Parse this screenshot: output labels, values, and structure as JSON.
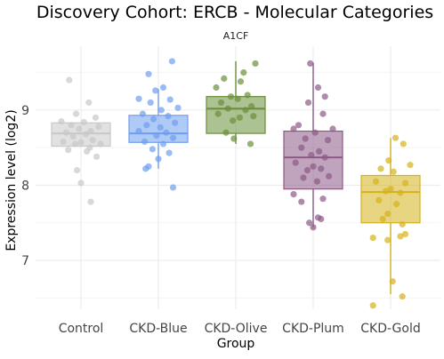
{
  "chart_data": {
    "type": "box",
    "title": "Discovery Cohort: ERCB - Molecular Categories",
    "subtitle": "A1CF",
    "xlabel": "Group",
    "ylabel": "Expression level (log2)",
    "ylim": [
      6.35,
      9.85
    ],
    "yticks": [
      7,
      8,
      9
    ],
    "grid": true,
    "legend": "none",
    "categories": [
      "Control",
      "CKD-Blue",
      "CKD-Olive",
      "CKD-Plum",
      "CKD-Gold"
    ],
    "colors": {
      "Control": "#c8c8c8",
      "CKD-Blue": "#6f9ef0",
      "CKD-Olive": "#6a8f3a",
      "CKD-Plum": "#8c5a86",
      "CKD-Gold": "#d4b21c"
    },
    "boxes": [
      {
        "group": "Control",
        "q1": 8.52,
        "median": 8.69,
        "q3": 8.83,
        "whisker_low": 8.52,
        "whisker_high": 8.83
      },
      {
        "group": "CKD-Blue",
        "q1": 8.57,
        "median": 8.69,
        "q3": 8.93,
        "whisker_low": 8.22,
        "whisker_high": 9.28
      },
      {
        "group": "CKD-Olive",
        "q1": 8.69,
        "median": 9.02,
        "q3": 9.18,
        "whisker_low": 8.55,
        "whisker_high": 9.65
      },
      {
        "group": "CKD-Plum",
        "q1": 7.95,
        "median": 8.37,
        "q3": 8.72,
        "whisker_low": 7.43,
        "whisker_high": 9.63
      },
      {
        "group": "CKD-Gold",
        "q1": 7.5,
        "median": 7.91,
        "q3": 8.13,
        "whisker_low": 6.55,
        "whisker_high": 8.63
      }
    ],
    "points": {
      "Control": [
        {
          "x": -0.12,
          "y": 9.4
        },
        {
          "x": 0.08,
          "y": 9.1
        },
        {
          "x": -0.05,
          "y": 8.95
        },
        {
          "x": 0.15,
          "y": 8.9
        },
        {
          "x": -0.2,
          "y": 8.85
        },
        {
          "x": 0.03,
          "y": 8.84
        },
        {
          "x": -0.1,
          "y": 8.8
        },
        {
          "x": 0.18,
          "y": 8.78
        },
        {
          "x": -0.02,
          "y": 8.75
        },
        {
          "x": 0.1,
          "y": 8.72
        },
        {
          "x": -0.15,
          "y": 8.7
        },
        {
          "x": 0.05,
          "y": 8.68
        },
        {
          "x": -0.08,
          "y": 8.65
        },
        {
          "x": 0.12,
          "y": 8.6
        },
        {
          "x": -0.18,
          "y": 8.58
        },
        {
          "x": 0.0,
          "y": 8.57
        },
        {
          "x": 0.2,
          "y": 8.55
        },
        {
          "x": -0.06,
          "y": 8.55
        },
        {
          "x": 0.09,
          "y": 8.5
        },
        {
          "x": -0.13,
          "y": 8.47
        },
        {
          "x": 0.06,
          "y": 8.45
        },
        {
          "x": 0.16,
          "y": 8.38
        },
        {
          "x": -0.04,
          "y": 8.2
        },
        {
          "x": 0.0,
          "y": 8.03
        },
        {
          "x": 0.1,
          "y": 7.78
        }
      ],
      "CKD-Blue": [
        {
          "x": -0.1,
          "y": 9.48
        },
        {
          "x": 0.14,
          "y": 9.65
        },
        {
          "x": 0.05,
          "y": 9.3
        },
        {
          "x": -0.03,
          "y": 9.26
        },
        {
          "x": -0.2,
          "y": 9.15
        },
        {
          "x": 0.12,
          "y": 9.14
        },
        {
          "x": -0.08,
          "y": 9.1
        },
        {
          "x": 0.2,
          "y": 9.03
        },
        {
          "x": 0.03,
          "y": 9.0
        },
        {
          "x": -0.16,
          "y": 8.95
        },
        {
          "x": 0.1,
          "y": 8.92
        },
        {
          "x": -0.05,
          "y": 8.88
        },
        {
          "x": 0.17,
          "y": 8.83
        },
        {
          "x": -0.12,
          "y": 8.8
        },
        {
          "x": 0.02,
          "y": 8.77
        },
        {
          "x": -0.2,
          "y": 8.72
        },
        {
          "x": 0.08,
          "y": 8.7
        },
        {
          "x": -0.02,
          "y": 8.66
        },
        {
          "x": 0.15,
          "y": 8.63
        },
        {
          "x": -0.14,
          "y": 8.58
        },
        {
          "x": 0.05,
          "y": 8.55
        },
        {
          "x": -0.06,
          "y": 8.48
        },
        {
          "x": 0.11,
          "y": 8.43
        },
        {
          "x": 0.0,
          "y": 8.35
        },
        {
          "x": -0.1,
          "y": 8.25
        },
        {
          "x": -0.13,
          "y": 8.22
        },
        {
          "x": 0.15,
          "y": 7.97
        }
      ],
      "CKD-Olive": [
        {
          "x": 0.2,
          "y": 9.62
        },
        {
          "x": 0.08,
          "y": 9.5
        },
        {
          "x": -0.12,
          "y": 9.42
        },
        {
          "x": 0.05,
          "y": 9.38
        },
        {
          "x": -0.2,
          "y": 9.3
        },
        {
          "x": 0.12,
          "y": 9.2
        },
        {
          "x": -0.05,
          "y": 9.18
        },
        {
          "x": 0.02,
          "y": 9.15
        },
        {
          "x": -0.15,
          "y": 9.1
        },
        {
          "x": 0.16,
          "y": 9.05
        },
        {
          "x": -0.08,
          "y": 9.02
        },
        {
          "x": 0.1,
          "y": 9.0
        },
        {
          "x": -0.18,
          "y": 8.95
        },
        {
          "x": 0.18,
          "y": 8.92
        },
        {
          "x": 0.04,
          "y": 8.9
        },
        {
          "x": -0.03,
          "y": 8.86
        },
        {
          "x": -0.1,
          "y": 8.7
        },
        {
          "x": -0.02,
          "y": 8.62
        },
        {
          "x": 0.15,
          "y": 8.55
        }
      ],
      "CKD-Plum": [
        {
          "x": -0.03,
          "y": 9.62
        },
        {
          "x": 0.05,
          "y": 9.3
        },
        {
          "x": 0.12,
          "y": 9.18
        },
        {
          "x": -0.05,
          "y": 9.1
        },
        {
          "x": 0.1,
          "y": 8.95
        },
        {
          "x": -0.15,
          "y": 8.8
        },
        {
          "x": 0.2,
          "y": 8.75
        },
        {
          "x": -0.2,
          "y": 8.75
        },
        {
          "x": 0.02,
          "y": 8.7
        },
        {
          "x": -0.08,
          "y": 8.62
        },
        {
          "x": 0.15,
          "y": 8.6
        },
        {
          "x": -0.12,
          "y": 8.5
        },
        {
          "x": 0.06,
          "y": 8.45
        },
        {
          "x": -0.02,
          "y": 8.4
        },
        {
          "x": 0.12,
          "y": 8.37
        },
        {
          "x": -0.18,
          "y": 8.3
        },
        {
          "x": 0.0,
          "y": 8.25
        },
        {
          "x": 0.08,
          "y": 8.22
        },
        {
          "x": -0.06,
          "y": 8.2
        },
        {
          "x": 0.16,
          "y": 8.12
        },
        {
          "x": -0.1,
          "y": 8.1
        },
        {
          "x": 0.04,
          "y": 8.05
        },
        {
          "x": -0.2,
          "y": 7.88
        },
        {
          "x": 0.1,
          "y": 7.82
        },
        {
          "x": -0.12,
          "y": 7.78
        },
        {
          "x": 0.05,
          "y": 7.57
        },
        {
          "x": 0.08,
          "y": 7.55
        },
        {
          "x": -0.04,
          "y": 7.5
        },
        {
          "x": 0.0,
          "y": 7.44
        }
      ],
      "CKD-Gold": [
        {
          "x": 0.05,
          "y": 8.63
        },
        {
          "x": 0.13,
          "y": 8.55
        },
        {
          "x": -0.02,
          "y": 8.33
        },
        {
          "x": 0.2,
          "y": 8.27
        },
        {
          "x": -0.1,
          "y": 8.22
        },
        {
          "x": 0.03,
          "y": 8.18
        },
        {
          "x": -0.15,
          "y": 8.05
        },
        {
          "x": 0.15,
          "y": 8.03
        },
        {
          "x": 0.0,
          "y": 7.95
        },
        {
          "x": -0.05,
          "y": 7.92
        },
        {
          "x": 0.1,
          "y": 7.9
        },
        {
          "x": -0.12,
          "y": 7.8
        },
        {
          "x": 0.06,
          "y": 7.75
        },
        {
          "x": -0.03,
          "y": 7.62
        },
        {
          "x": -0.08,
          "y": 7.55
        },
        {
          "x": 0.12,
          "y": 7.48
        },
        {
          "x": -0.18,
          "y": 7.3
        },
        {
          "x": 0.15,
          "y": 7.35
        },
        {
          "x": 0.1,
          "y": 7.32
        },
        {
          "x": -0.03,
          "y": 7.27
        },
        {
          "x": 0.02,
          "y": 6.72
        },
        {
          "x": 0.12,
          "y": 6.52
        },
        {
          "x": -0.18,
          "y": 6.4
        }
      ]
    }
  }
}
